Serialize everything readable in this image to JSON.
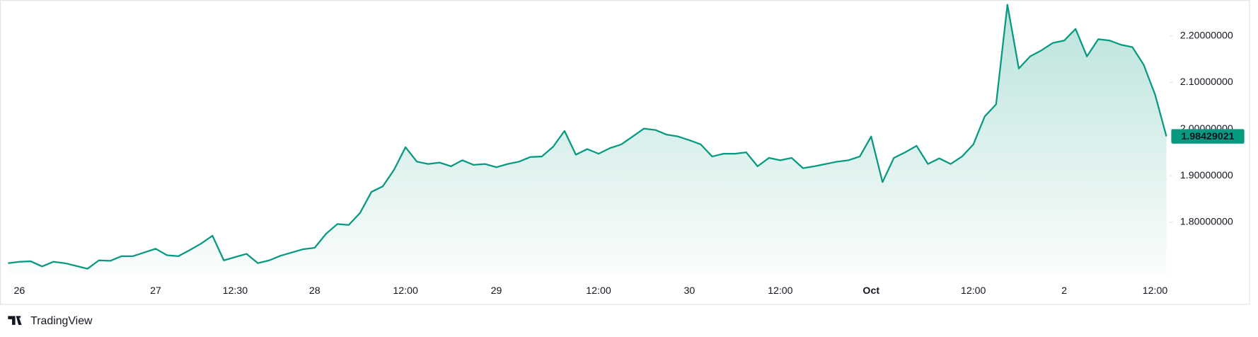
{
  "chart_data": {
    "type": "area",
    "color": "#089981",
    "categories": [
      null,
      "26",
      null,
      null,
      null,
      null,
      null,
      null,
      null,
      null,
      null,
      null,
      null,
      "27",
      null,
      null,
      null,
      null,
      null,
      null,
      "12:30",
      null,
      null,
      null,
      null,
      null,
      null,
      "28",
      null,
      null,
      null,
      null,
      null,
      null,
      null,
      "12:00",
      null,
      null,
      null,
      null,
      null,
      null,
      null,
      "29",
      null,
      null,
      null,
      null,
      null,
      null,
      null,
      null,
      "12:00",
      null,
      null,
      null,
      null,
      null,
      null,
      null,
      "30",
      null,
      null,
      null,
      null,
      null,
      null,
      null,
      "12:00",
      null,
      null,
      null,
      null,
      null,
      null,
      null,
      "Oct",
      null,
      null,
      null,
      null,
      null,
      null,
      null,
      null,
      "12:00",
      null,
      null,
      null,
      null,
      null,
      null,
      null,
      "2",
      null,
      null,
      null,
      null,
      null,
      null,
      null,
      "12:00",
      null
    ],
    "values": [
      1.712,
      1.715,
      1.716,
      1.705,
      1.715,
      1.712,
      1.706,
      1.7,
      1.718,
      1.717,
      1.727,
      1.727,
      1.735,
      1.743,
      1.729,
      1.727,
      1.74,
      1.754,
      1.771,
      1.718,
      1.725,
      1.732,
      1.712,
      1.718,
      1.728,
      1.735,
      1.742,
      1.745,
      1.775,
      1.796,
      1.794,
      1.82,
      1.865,
      1.877,
      1.913,
      1.961,
      1.93,
      1.925,
      1.928,
      1.92,
      1.933,
      1.923,
      1.925,
      1.918,
      1.925,
      1.93,
      1.94,
      1.941,
      1.962,
      1.996,
      1.945,
      1.957,
      1.947,
      1.959,
      1.967,
      1.984,
      2.001,
      1.998,
      1.988,
      1.984,
      1.976,
      1.967,
      1.941,
      1.947,
      1.947,
      1.95,
      1.92,
      1.938,
      1.933,
      1.938,
      1.916,
      1.92,
      1.925,
      1.93,
      1.933,
      1.941,
      1.984,
      1.886,
      1.938,
      1.95,
      1.964,
      1.925,
      1.937,
      1.925,
      1.941,
      1.967,
      2.027,
      2.053,
      2.267,
      2.13,
      2.156,
      2.169,
      2.185,
      2.19,
      2.215,
      2.156,
      2.193,
      2.19,
      2.181,
      2.176,
      2.138,
      2.074,
      1.98429021
    ],
    "ylim": [
      1.69,
      2.27
    ],
    "yticks": [
      {
        "value": 1.8,
        "label": "1.80000000"
      },
      {
        "value": 1.9,
        "label": "1.90000000"
      },
      {
        "value": 2.0,
        "label": "2.00000000"
      },
      {
        "value": 2.1,
        "label": "2.10000000"
      },
      {
        "value": 2.2,
        "label": "2.20000000"
      }
    ],
    "bold_categories": [
      "Oct"
    ],
    "watermark": "TradingView"
  }
}
